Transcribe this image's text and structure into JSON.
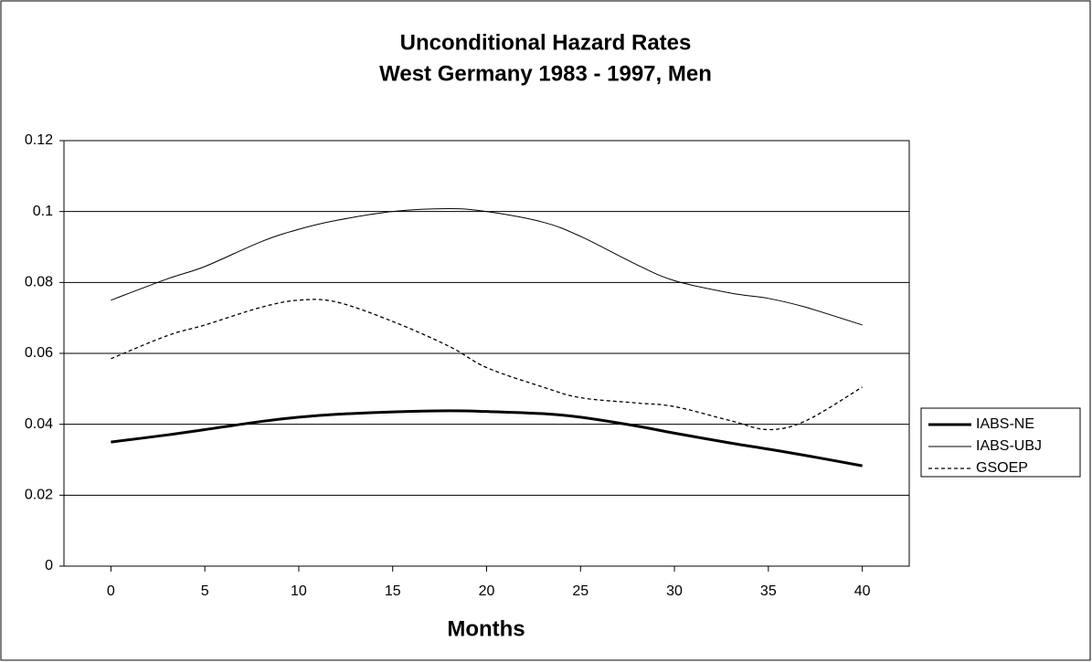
{
  "chart_data": {
    "type": "line",
    "title": "Unconditional Hazard Rates",
    "subtitle": "West Germany 1983 - 1997, Men",
    "x_label": "Months",
    "x": [
      0,
      3,
      5,
      8,
      10,
      12,
      15,
      18,
      20,
      23,
      25,
      28,
      30,
      33,
      35,
      37,
      40
    ],
    "series": [
      {
        "name": "IABS-NE",
        "color": "#000000",
        "line_width": 3,
        "line_style": "solid",
        "values": [
          0.035,
          0.037,
          0.0385,
          0.0408,
          0.042,
          0.0428,
          0.0435,
          0.0438,
          0.0436,
          0.043,
          0.042,
          0.0395,
          0.0375,
          0.0347,
          0.033,
          0.0312,
          0.0283
        ]
      },
      {
        "name": "IABS-UBJ",
        "color": "#000000",
        "line_width": 1,
        "line_style": "solid",
        "values": [
          0.075,
          0.081,
          0.0845,
          0.0915,
          0.095,
          0.0975,
          0.1,
          0.1008,
          0.1,
          0.097,
          0.093,
          0.085,
          0.0805,
          0.077,
          0.0755,
          0.073,
          0.068
        ]
      },
      {
        "name": "GSOEP",
        "color": "#000000",
        "line_width": 1.3,
        "line_style": "dashed",
        "values": [
          0.0585,
          0.065,
          0.068,
          0.073,
          0.075,
          0.0745,
          0.069,
          0.062,
          0.056,
          0.0505,
          0.0475,
          0.046,
          0.045,
          0.041,
          0.0385,
          0.041,
          0.0505
        ]
      }
    ],
    "xlim": [
      -2.5,
      42.5
    ],
    "xticks": [
      0,
      5,
      10,
      15,
      20,
      25,
      30,
      35,
      40
    ],
    "ylim": [
      0,
      0.12
    ],
    "yticks": [
      0,
      0.02,
      0.04,
      0.06,
      0.08,
      0.1,
      0.12
    ],
    "grid": true,
    "legend": "right"
  }
}
